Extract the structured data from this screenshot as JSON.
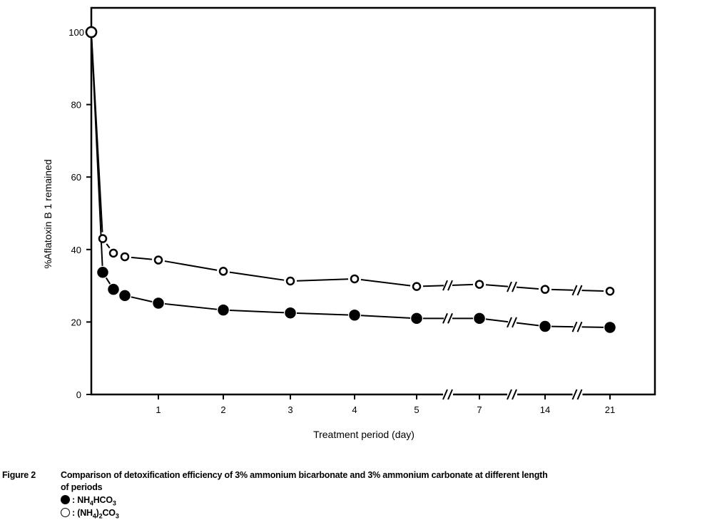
{
  "chart_data": {
    "type": "line",
    "xlabel": "Treatment period (day)",
    "ylabel": "%Aflatoxin B 1 remained",
    "ylim": [
      0,
      100
    ],
    "yticks": [
      "0",
      "20",
      "40",
      "60",
      "80",
      "100"
    ],
    "xticks": [
      "1",
      "2",
      "3",
      "4",
      "5",
      "7",
      "14",
      "21"
    ],
    "x_axis_breaks": [
      "5-7",
      "7-14",
      "14-21"
    ],
    "grid": false,
    "series": [
      {
        "name": "NH4HCO3",
        "marker": "filled-circle",
        "x": [
          0,
          0.17,
          0.33,
          0.5,
          1,
          2,
          3,
          4,
          5,
          7,
          14,
          21
        ],
        "y": [
          100,
          33.7,
          29,
          27.3,
          25.2,
          23.3,
          22.5,
          21.9,
          21,
          21,
          18.8,
          18.5
        ]
      },
      {
        "name": "(NH4)2CO3",
        "marker": "open-circle",
        "x": [
          0,
          0.17,
          0.33,
          0.5,
          1,
          2,
          3,
          4,
          5,
          7,
          14,
          21
        ],
        "y": [
          100,
          43,
          39,
          38,
          37.1,
          34,
          31.3,
          31.9,
          29.8,
          30.4,
          29,
          28.5
        ]
      }
    ]
  },
  "caption": {
    "label": "Figure 2",
    "text": "Comparison of detoxification efficiency of 3% ammonium bicarbonate and 3% ammonium carbonate at different length",
    "text2": "of periods",
    "legend": [
      {
        "symbol": "filled-circle",
        "parts": [
          ": NH",
          "4",
          "HCO",
          "3"
        ]
      },
      {
        "symbol": "open-circle",
        "parts": [
          ": (NH",
          "4",
          ")",
          "2",
          "CO",
          "3"
        ]
      }
    ]
  }
}
